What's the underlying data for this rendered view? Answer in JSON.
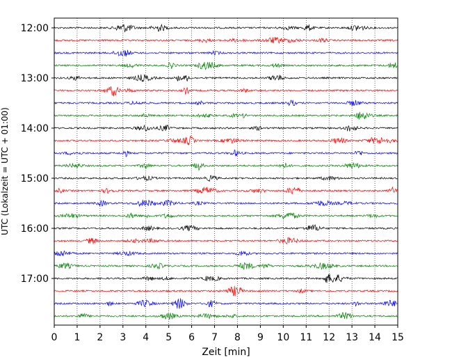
{
  "chart_data": {
    "type": "line",
    "title": "",
    "xlabel": "Zeit  [min]",
    "ylabel": "UTC (Lokalzeit = UTC + 01:00)",
    "xlim": [
      0,
      15
    ],
    "x_ticks": [
      "0",
      "1",
      "2",
      "3",
      "4",
      "5",
      "6",
      "7",
      "8",
      "9",
      "10",
      "11",
      "12",
      "13",
      "14",
      "15"
    ],
    "y_ticks": [
      "12:00",
      "13:00",
      "14:00",
      "15:00",
      "16:00",
      "17:00"
    ],
    "trace_interval_minutes": 15,
    "first_trace": "12:00",
    "trace_count": 24,
    "trace_colors": [
      "#000000",
      "#ff0000",
      "#0000ff",
      "#008000"
    ],
    "x_grid": true,
    "legend": "none"
  }
}
